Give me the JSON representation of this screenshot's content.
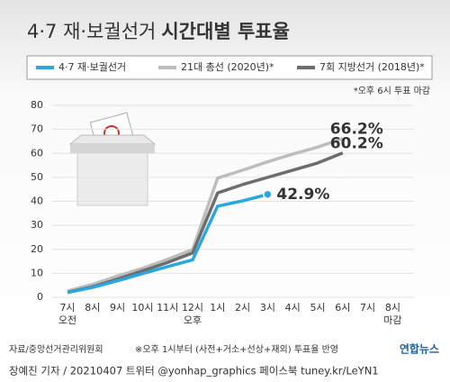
{
  "chart_data": {
    "type": "line",
    "title": [
      "4·7 재·보궐선거",
      "시간대별 투표율"
    ],
    "note": "*오후 6시 투표 마감",
    "categories": [
      "7시",
      "8시",
      "9시",
      "10시",
      "11시",
      "12시",
      "1시",
      "2시",
      "3시",
      "4시",
      "5시",
      "6시",
      "7시",
      "8시"
    ],
    "category_sublabels": [
      "오전",
      null,
      null,
      null,
      null,
      "오후",
      null,
      null,
      null,
      null,
      null,
      null,
      null,
      "마감"
    ],
    "series": [
      {
        "name": "4·7 재·보궐선거",
        "color": "#29a8e0",
        "values": [
          2.0,
          4.1,
          6.9,
          9.9,
          12.8,
          15.6,
          38.0,
          40.2,
          42.9,
          null,
          null,
          null,
          null,
          null
        ],
        "end_label": "42.9%"
      },
      {
        "name": "21대 총선 (2020년)*",
        "color": "#bdbdbd",
        "values": [
          2.6,
          5.4,
          8.9,
          12.1,
          15.8,
          19.9,
          49.7,
          53.0,
          56.5,
          59.7,
          62.6,
          66.2,
          null,
          null
        ],
        "end_label": "66.2%"
      },
      {
        "name": "7회 지방선거 (2018년)*",
        "color": "#6d6d6d",
        "values": [
          2.1,
          4.4,
          7.6,
          11.0,
          14.5,
          18.5,
          43.5,
          47.0,
          50.0,
          53.0,
          56.0,
          60.2,
          null,
          null
        ],
        "end_label": "60.2%"
      }
    ],
    "ylim": [
      0,
      80
    ],
    "yticks": [
      0,
      10,
      20,
      30,
      40,
      50,
      60,
      70,
      80
    ],
    "grid": true,
    "source": "자료/중앙선거관리위원회",
    "footnote": "※오후 1시부터 (사전+거소+선상+재외) 투표율 반영",
    "byline": "장예진 기자 / 20210407 트위터 @yonhap_graphics 페이스북 tuney.kr/LeYN1",
    "logo": "연합뉴스"
  }
}
